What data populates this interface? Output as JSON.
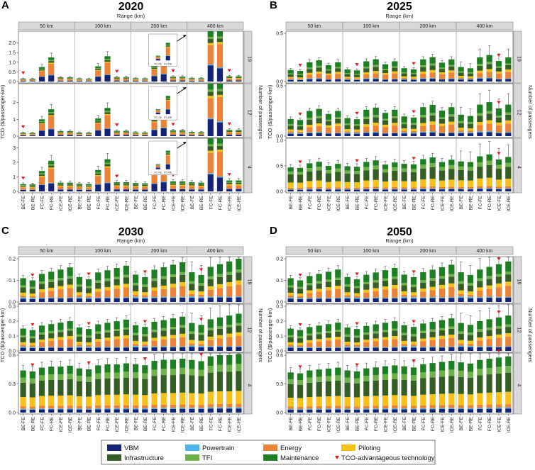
{
  "figure": {
    "range_label": "Range (km)",
    "y_label": "TCO ($/passenger-km)",
    "passengers_label": "Number of passengers",
    "ranges": [
      "50 km",
      "100 km",
      "200 km",
      "400 km"
    ],
    "passengers": [
      "19",
      "12",
      "4"
    ],
    "technologies": [
      "BE-FE",
      "BE-RE",
      "FC-FE",
      "FC-RE",
      "ICE-FE",
      "ICE-RE"
    ],
    "components": [
      "VBM",
      "Powertrain",
      "Energy",
      "Piloting",
      "Infrastructure",
      "TFI",
      "Maintenance"
    ],
    "colors": {
      "VBM": "#14237a",
      "Powertrain": "#4db6e8",
      "Energy": "#ec8236",
      "Piloting": "#f7c11c",
      "Infrastructure": "#355e25",
      "TFI": "#6fb24a",
      "Maintenance": "#1e7f22",
      "marker": "#e31a1c"
    }
  },
  "legend": {
    "items": [
      "VBM",
      "Powertrain",
      "Energy",
      "Piloting",
      "Infrastructure",
      "TFI",
      "Maintenance"
    ],
    "marker_label": "TCO-advantageous technology"
  },
  "chart_data": [
    {
      "type": "bar",
      "letter": "A",
      "title": "2020",
      "stacked": true,
      "ylims": [
        [
          0,
          2.5
        ],
        [
          0,
          3
        ],
        [
          0,
          3.5
        ]
      ],
      "yticks": [
        [
          0,
          0.5,
          1.0,
          1.5,
          2.0
        ],
        [
          0,
          1,
          2
        ],
        [
          0,
          1.0,
          2.0,
          3.0
        ]
      ],
      "overflow_bars": [
        "400 km FC-FE",
        "400 km FC-RE"
      ],
      "inset_labels": [
        "FC-FE",
        "FC-RE"
      ],
      "totals_19": {
        "BE-FE": 0.15,
        "BE-RE": 0.14,
        "FC-FE": 0.75,
        "FC-RE": 1.25,
        "ICE-FE": 0.22,
        "ICE-RE": 0.22
      },
      "totals_12": {
        "BE-FE": 0.2,
        "BE-RE": 0.19,
        "FC-FE": 1.0,
        "FC-RE": 1.6,
        "ICE-FE": 0.3,
        "ICE-RE": 0.3
      },
      "totals_4": {
        "BE-FE": 0.5,
        "BE-RE": 0.48,
        "FC-FE": 1.4,
        "FC-RE": 2.1,
        "ICE-FE": 0.6,
        "ICE-RE": 0.6
      }
    },
    {
      "type": "bar",
      "letter": "B",
      "title": "2025",
      "stacked": true,
      "ylims": [
        [
          0,
          0.5
        ],
        [
          0,
          0.5
        ],
        [
          0,
          1.0
        ]
      ],
      "yticks": [
        [
          0,
          0.5
        ],
        [
          0,
          0.5
        ],
        [
          0,
          0.5,
          1.0
        ]
      ],
      "totals_19": {
        "BE-FE": 0.12,
        "BE-RE": 0.11,
        "FC-FE": 0.2,
        "FC-RE": 0.22,
        "ICE-FE": 0.17,
        "ICE-RE": 0.2
      },
      "totals_12": {
        "BE-FE": 0.17,
        "BE-RE": 0.16,
        "FC-FE": 0.25,
        "FC-RE": 0.27,
        "ICE-FE": 0.22,
        "ICE-RE": 0.25
      },
      "totals_4": {
        "BE-FE": 0.47,
        "BE-RE": 0.46,
        "FC-FE": 0.55,
        "FC-RE": 0.58,
        "ICE-FE": 0.5,
        "ICE-RE": 0.54
      }
    },
    {
      "type": "bar",
      "letter": "C",
      "title": "2030",
      "stacked": true,
      "ylims": [
        [
          0,
          0.2
        ],
        [
          0,
          0.3
        ],
        [
          0,
          0.6
        ]
      ],
      "yticks": [
        [
          0,
          0.1,
          0.2
        ],
        [
          0,
          0.1,
          0.2,
          0.3
        ],
        [
          0,
          0.3,
          0.6
        ]
      ],
      "totals_19": {
        "BE-FE": 0.11,
        "BE-RE": 0.1,
        "FC-FE": 0.13,
        "FC-RE": 0.14,
        "ICE-FE": 0.15,
        "ICE-RE": 0.16
      },
      "totals_12": {
        "BE-FE": 0.15,
        "BE-RE": 0.14,
        "FC-FE": 0.17,
        "FC-RE": 0.18,
        "ICE-FE": 0.19,
        "ICE-RE": 0.2
      },
      "totals_4": {
        "BE-FE": 0.44,
        "BE-RE": 0.43,
        "FC-FE": 0.47,
        "FC-RE": 0.48,
        "ICE-FE": 0.48,
        "ICE-RE": 0.49
      }
    },
    {
      "type": "bar",
      "letter": "D",
      "title": "2050",
      "stacked": true,
      "ylims": [
        [
          0,
          0.2
        ],
        [
          0,
          0.3
        ],
        [
          0,
          0.6
        ]
      ],
      "yticks": [
        [
          0,
          0.1,
          0.2
        ],
        [
          0,
          0.1,
          0.2,
          0.3
        ],
        [
          0,
          0.3,
          0.6
        ]
      ],
      "totals_19": {
        "BE-FE": 0.11,
        "BE-RE": 0.1,
        "FC-FE": 0.12,
        "FC-RE": 0.13,
        "ICE-FE": 0.14,
        "ICE-RE": 0.15
      },
      "totals_12": {
        "BE-FE": 0.15,
        "BE-RE": 0.14,
        "FC-FE": 0.16,
        "FC-RE": 0.17,
        "ICE-FE": 0.18,
        "ICE-RE": 0.19
      },
      "totals_4": {
        "BE-FE": 0.42,
        "BE-RE": 0.41,
        "FC-FE": 0.44,
        "FC-RE": 0.45,
        "ICE-FE": 0.46,
        "ICE-RE": 0.47
      }
    }
  ]
}
